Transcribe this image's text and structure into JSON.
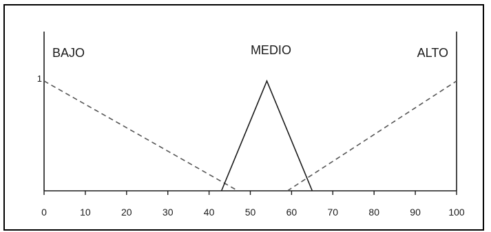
{
  "chart_data": {
    "type": "line",
    "title": "",
    "xlabel": "",
    "ylabel": "",
    "xlim": [
      0,
      100
    ],
    "ylim": [
      0,
      1
    ],
    "x_ticks": [
      "0",
      "10",
      "20",
      "30",
      "40",
      "50",
      "60",
      "70",
      "80",
      "90",
      "100"
    ],
    "y_tick_label": "1",
    "grid": false,
    "series": [
      {
        "name": "BAJO",
        "style": "dashed",
        "color": "#555555",
        "points": [
          [
            0,
            1
          ],
          [
            47,
            0
          ]
        ]
      },
      {
        "name": "MEDIO",
        "style": "solid",
        "color": "#1a1a1a",
        "points": [
          [
            43,
            0
          ],
          [
            54,
            1
          ],
          [
            65,
            0
          ]
        ]
      },
      {
        "name": "ALTO",
        "style": "dashed",
        "color": "#555555",
        "points": [
          [
            59,
            0
          ],
          [
            100,
            1
          ]
        ]
      }
    ],
    "annotations": [
      {
        "text": "BAJO",
        "at_x": 2
      },
      {
        "text": "MEDIO",
        "at_x": 55
      },
      {
        "text": "ALTO",
        "at_x": 98
      }
    ]
  }
}
